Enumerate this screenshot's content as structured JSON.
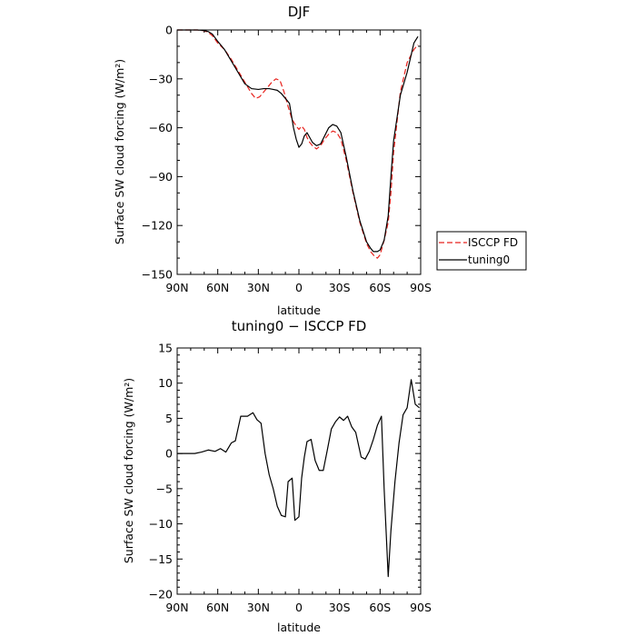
{
  "chart_data": [
    {
      "type": "line",
      "title": "DJF",
      "xlabel": "latitude",
      "ylabel": "Surface SW cloud forcing (W/m²)",
      "xlim": [
        90,
        -90
      ],
      "ylim": [
        -150,
        0
      ],
      "xticks": [
        90,
        60,
        30,
        0,
        -30,
        -60,
        -90
      ],
      "xtick_labels": [
        "90N",
        "60N",
        "30N",
        "0",
        "30S",
        "60S",
        "90S"
      ],
      "yticks": [
        0,
        -30,
        -60,
        -90,
        -120,
        -150
      ],
      "ytick_labels": [
        "0",
        "−30",
        "−60",
        "−90",
        "−120",
        "−150"
      ],
      "legend_position": "outside-right",
      "series": [
        {
          "name": "ISCCP FD",
          "color": "#e8221d",
          "style": "dashed",
          "x": [
            90,
            80,
            75,
            70,
            67,
            64,
            60,
            55,
            50,
            45,
            40,
            35,
            32,
            29,
            26,
            23,
            20,
            17,
            14,
            11,
            8,
            5,
            2,
            0,
            -2,
            -4,
            -6,
            -8,
            -10,
            -13,
            -16,
            -19,
            -22,
            -25,
            -28,
            -31,
            -35,
            -40,
            -45,
            -50,
            -53,
            -56,
            -58,
            -60,
            -63,
            -66,
            -68,
            -70,
            -75,
            -80,
            -85,
            -88
          ],
          "y": [
            0,
            0,
            0,
            -0.5,
            -1.5,
            -3.5,
            -8,
            -12,
            -18,
            -25,
            -32,
            -39,
            -42,
            -41,
            -38,
            -35,
            -32,
            -30,
            -31,
            -38,
            -47,
            -55,
            -59,
            -61,
            -59,
            -61,
            -66,
            -69,
            -71,
            -73,
            -71,
            -67,
            -64,
            -62,
            -63,
            -67,
            -80,
            -100,
            -118,
            -131,
            -136,
            -139,
            -140,
            -138,
            -129,
            -118,
            -100,
            -75,
            -38,
            -20,
            -12,
            -9
          ]
        },
        {
          "name": "tuning0",
          "color": "#000000",
          "style": "solid",
          "x": [
            90,
            80,
            75,
            70,
            67,
            64,
            60,
            55,
            50,
            45,
            40,
            35,
            30,
            26,
            22,
            19,
            16,
            13,
            10,
            7,
            4,
            2,
            0,
            -2,
            -4,
            -6,
            -8,
            -10,
            -13,
            -16,
            -19,
            -22,
            -25,
            -28,
            -31,
            -35,
            -40,
            -45,
            -50,
            -53,
            -55,
            -58,
            -60,
            -63,
            -66,
            -68,
            -70,
            -75,
            -80,
            -85,
            -88
          ],
          "y": [
            0,
            0,
            0,
            -0.3,
            -1,
            -2.5,
            -7,
            -12,
            -19,
            -26,
            -33,
            -36,
            -36.5,
            -36,
            -36,
            -36.5,
            -37,
            -39,
            -42,
            -45,
            -60,
            -67,
            -72,
            -70,
            -65,
            -63,
            -66,
            -69,
            -71,
            -70,
            -65,
            -60,
            -58,
            -59,
            -63,
            -78,
            -99,
            -117,
            -130,
            -134,
            -136,
            -136,
            -135,
            -129,
            -114,
            -90,
            -68,
            -40,
            -26,
            -8,
            -4
          ]
        }
      ]
    },
    {
      "type": "line",
      "title": "tuning0 − ISCCP FD",
      "xlabel": "latitude",
      "ylabel": "Surface SW cloud forcing (W/m²)",
      "xlim": [
        90,
        -90
      ],
      "ylim": [
        -20,
        15
      ],
      "xticks": [
        90,
        60,
        30,
        0,
        -30,
        -60,
        -90
      ],
      "xtick_labels": [
        "90N",
        "60N",
        "30N",
        "0",
        "30S",
        "60S",
        "90S"
      ],
      "yticks": [
        15,
        10,
        5,
        0,
        -5,
        -10,
        -15,
        -20
      ],
      "ytick_labels": [
        "15",
        "10",
        "5",
        "0",
        "−5",
        "−10",
        "−15",
        "−20"
      ],
      "series": [
        {
          "color": "#000000",
          "style": "solid",
          "x": [
            90,
            82,
            77,
            72,
            67,
            62,
            58,
            54,
            50,
            47,
            43,
            38,
            34,
            31,
            28,
            25,
            22,
            19,
            16,
            13,
            10,
            8,
            5,
            3,
            0,
            -2,
            -4,
            -6,
            -9,
            -12,
            -15,
            -18,
            -21,
            -24,
            -27,
            -30,
            -33,
            -36,
            -39,
            -42,
            -46,
            -49,
            -52,
            -55,
            -58,
            -61,
            -63,
            -66,
            -68,
            -71,
            -74,
            -77,
            -80,
            -83,
            -86,
            -89
          ],
          "y": [
            0,
            0,
            0,
            0.2,
            0.5,
            0.3,
            0.7,
            0.2,
            1.5,
            1.8,
            5.3,
            5.3,
            5.8,
            4.8,
            4.3,
            0,
            -3,
            -5,
            -7.5,
            -8.8,
            -9,
            -4,
            -3.5,
            -9.5,
            -9,
            -3.5,
            -0.5,
            1.7,
            2,
            -1,
            -2.4,
            -2.4,
            0.5,
            3.5,
            4.5,
            5.2,
            4.7,
            5.3,
            3.8,
            3,
            -0.5,
            -0.8,
            0.3,
            2,
            4,
            5.3,
            -5,
            -17.5,
            -11,
            -4,
            1.5,
            5.5,
            6.5,
            10.5,
            7,
            6.5
          ]
        }
      ]
    }
  ]
}
